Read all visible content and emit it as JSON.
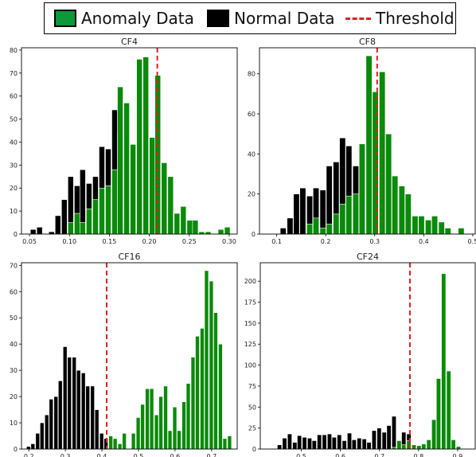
{
  "legend": {
    "anomaly_label": "Anomaly Data",
    "normal_label": "Normal Data",
    "threshold_label": "Threshold",
    "position": "top-center"
  },
  "colors": {
    "anomaly": "#0a8a0a",
    "normal": "#000000",
    "threshold": "#e02020"
  },
  "chart_data": [
    {
      "type": "bar",
      "title": "CF4",
      "xlim": [
        0.04,
        0.31
      ],
      "ylim": [
        0,
        81
      ],
      "xticks": [
        0.05,
        0.1,
        0.15,
        0.2,
        0.25,
        0.3
      ],
      "xtick_labels": [
        "0.05",
        "0.10",
        "0.15",
        "0.20",
        "0.25",
        "0.30"
      ],
      "yticks": [
        0,
        10,
        20,
        30,
        40,
        50,
        60,
        70,
        80
      ],
      "threshold": 0.21,
      "bin_width": 0.0078,
      "series": [
        {
          "name": "Normal Data",
          "x": [
            0.055,
            0.063,
            0.078,
            0.086,
            0.094,
            0.102,
            0.11,
            0.117,
            0.125,
            0.133,
            0.141,
            0.149,
            0.157,
            0.164,
            0.172,
            0.18
          ],
          "values": [
            2,
            3,
            1,
            8,
            15,
            25,
            21,
            28,
            22,
            25,
            38,
            37,
            54,
            44,
            10,
            7
          ]
        },
        {
          "name": "Anomaly Data",
          "x": [
            0.102,
            0.11,
            0.117,
            0.125,
            0.133,
            0.141,
            0.149,
            0.157,
            0.164,
            0.172,
            0.18,
            0.188,
            0.196,
            0.204,
            0.211,
            0.219,
            0.227,
            0.235,
            0.243,
            0.251,
            0.258,
            0.266,
            0.274,
            0.29,
            0.298
          ],
          "values": [
            5,
            9,
            5,
            11,
            15,
            20,
            21,
            28,
            64,
            57,
            39,
            76,
            77,
            42,
            69,
            31,
            25,
            9,
            12,
            6,
            6,
            1,
            1,
            2,
            3
          ]
        }
      ]
    },
    {
      "type": "bar",
      "title": "CF8",
      "xlim": [
        0.065,
        0.505
      ],
      "ylim": [
        0,
        93
      ],
      "xticks": [
        0.1,
        0.2,
        0.3,
        0.4,
        0.5
      ],
      "xtick_labels": [
        "0.1",
        "0.2",
        "0.3",
        "0.4",
        "0.5"
      ],
      "yticks": [
        0,
        20,
        40,
        60,
        80
      ],
      "threshold": 0.305,
      "bin_width": 0.0134,
      "series": [
        {
          "name": "Normal Data",
          "x": [
            0.114,
            0.128,
            0.141,
            0.154,
            0.168,
            0.181,
            0.195,
            0.208,
            0.222,
            0.235,
            0.248,
            0.262,
            0.275,
            0.289,
            0.302
          ],
          "values": [
            3,
            8,
            20,
            23,
            19,
            23,
            22,
            34,
            36,
            48,
            44,
            34,
            22,
            21,
            5
          ]
        },
        {
          "name": "Anomaly Data",
          "x": [
            0.168,
            0.181,
            0.195,
            0.208,
            0.222,
            0.235,
            0.248,
            0.262,
            0.275,
            0.289,
            0.302,
            0.316,
            0.329,
            0.342,
            0.356,
            0.369,
            0.383,
            0.396,
            0.41,
            0.423,
            0.437,
            0.45,
            0.477
          ],
          "values": [
            5,
            8,
            3,
            5,
            10,
            15,
            19,
            20,
            45,
            89,
            71,
            81,
            50,
            29,
            24,
            20,
            9,
            9,
            7,
            9,
            6,
            3,
            3
          ]
        }
      ]
    },
    {
      "type": "bar",
      "title": "CF16",
      "xlim": [
        0.18,
        0.77
      ],
      "ylim": [
        0,
        71
      ],
      "xticks": [
        0.2,
        0.3,
        0.4,
        0.5,
        0.6,
        0.7
      ],
      "xtick_labels": [
        "0.2",
        "0.3",
        "0.4",
        "0.5",
        "0.6",
        "0.7"
      ],
      "yticks": [
        0,
        10,
        20,
        30,
        40,
        50,
        60,
        70
      ],
      "threshold": 0.413,
      "bin_width": 0.0125,
      "series": [
        {
          "name": "Normal Data",
          "x": [
            0.2,
            0.212,
            0.225,
            0.237,
            0.25,
            0.262,
            0.275,
            0.287,
            0.3,
            0.312,
            0.325,
            0.337,
            0.35,
            0.362,
            0.375,
            0.387,
            0.4,
            0.412
          ],
          "values": [
            1,
            2,
            6,
            10,
            13,
            19,
            20,
            26,
            39,
            35,
            35,
            30,
            29,
            24,
            24,
            15,
            6,
            4
          ]
        },
        {
          "name": "Anomaly Data",
          "x": [
            0.425,
            0.437,
            0.45,
            0.462,
            0.487,
            0.5,
            0.512,
            0.525,
            0.537,
            0.55,
            0.562,
            0.575,
            0.587,
            0.6,
            0.612,
            0.625,
            0.637,
            0.65,
            0.662,
            0.675,
            0.687,
            0.7,
            0.712,
            0.725,
            0.737,
            0.75
          ],
          "values": [
            5,
            4,
            2,
            6,
            6,
            12,
            17,
            23,
            23,
            13,
            20,
            24,
            7,
            16,
            7,
            18,
            25,
            35,
            43,
            46,
            68,
            64,
            52,
            40,
            4,
            5
          ]
        }
      ]
    },
    {
      "type": "bar",
      "title": "CF24",
      "xlim": [
        0.395,
        0.945
      ],
      "ylim": [
        0,
        222
      ],
      "xticks": [
        0.5,
        0.6,
        0.7,
        0.8,
        0.9
      ],
      "xtick_labels": [
        "0.5",
        "0.6",
        "0.7",
        "0.8",
        "0.9"
      ],
      "yticks": [
        0,
        25,
        50,
        75,
        100,
        125,
        150,
        175,
        200
      ],
      "threshold": 0.778,
      "bin_width": 0.0127,
      "series": [
        {
          "name": "Normal Data",
          "x": [
            0.445,
            0.458,
            0.471,
            0.484,
            0.496,
            0.509,
            0.522,
            0.534,
            0.547,
            0.56,
            0.573,
            0.585,
            0.598,
            0.611,
            0.624,
            0.636,
            0.649,
            0.662,
            0.674,
            0.687,
            0.7,
            0.713,
            0.725,
            0.738,
            0.751,
            0.763,
            0.776,
            0.789
          ],
          "values": [
            5,
            13,
            18,
            8,
            16,
            14,
            13,
            10,
            17,
            17,
            18,
            14,
            17,
            10,
            19,
            11,
            13,
            12,
            8,
            22,
            25,
            20,
            28,
            39,
            8,
            20,
            18,
            5
          ]
        },
        {
          "name": "Anomaly Data",
          "x": [
            0.738,
            0.751,
            0.763,
            0.776,
            0.789,
            0.802,
            0.814,
            0.827,
            0.84,
            0.852,
            0.865,
            0.878,
            0.89,
            0.903
          ],
          "values": [
            2,
            10,
            5,
            10,
            5,
            4,
            6,
            11,
            35,
            84,
            209,
            93,
            11,
            3
          ]
        }
      ]
    }
  ]
}
